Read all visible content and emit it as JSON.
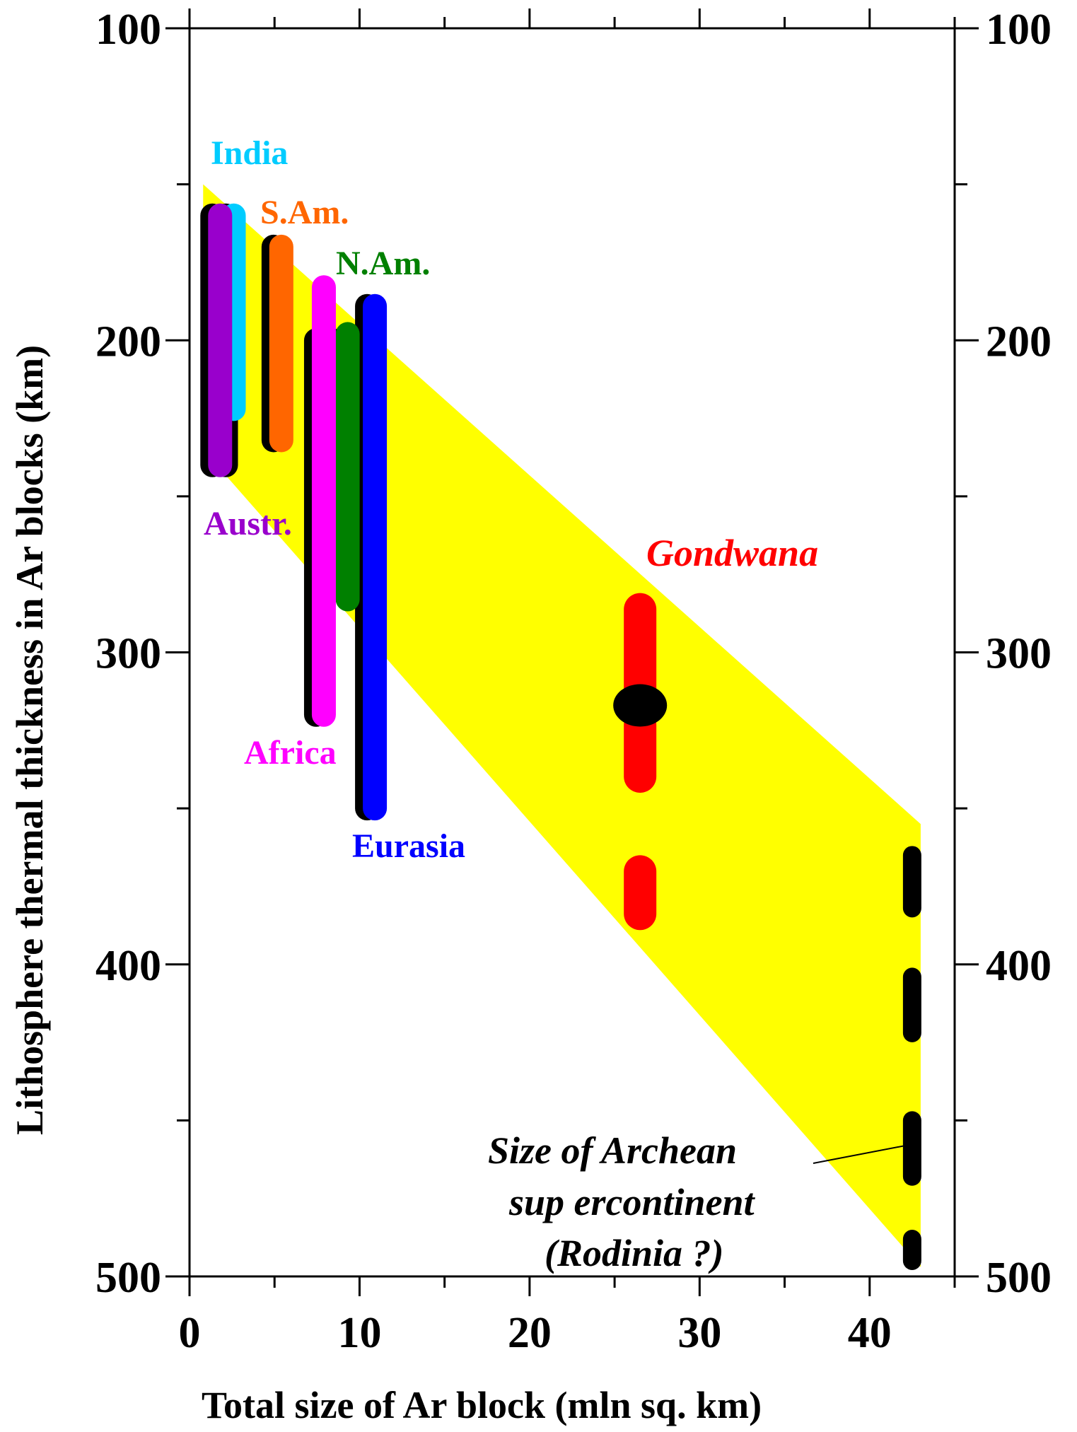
{
  "chart_data": {
    "type": "range",
    "xlabel": "Total size of Ar block (mln sq. km)",
    "ylabel": "Lithosphere thermal thickness in Ar blocks (km)",
    "xlim": [
      0,
      45
    ],
    "ylim": [
      100,
      500
    ],
    "y_inverted": true,
    "x_ticks": [
      0,
      10,
      20,
      30,
      40
    ],
    "y_ticks": [
      100,
      200,
      300,
      400,
      500
    ],
    "right_axis_ticks": [
      100,
      200,
      300,
      400,
      500
    ],
    "band": {
      "color": "#ffff00",
      "upper_edge": [
        [
          0.8,
          150
        ],
        [
          43,
          355
        ]
      ],
      "lower_edge": [
        [
          0.8,
          235
        ],
        [
          43,
          497
        ]
      ]
    },
    "series": [
      {
        "name": "India",
        "color": "#00ccff",
        "x": 2.6,
        "y_range": [
          160,
          222
        ],
        "black_range": [
          160,
          240
        ]
      },
      {
        "name": "S.Am.",
        "color": "#ff6600",
        "x": 5.4,
        "y_range": [
          170,
          232
        ],
        "black_range": [
          170,
          232
        ]
      },
      {
        "name": "N.Am.",
        "color": "#008000",
        "x": 9.3,
        "y_range": [
          198,
          283
        ],
        "black_range": [
          200,
          200
        ]
      },
      {
        "name": "Austr.",
        "color": "#9900cc",
        "x": 1.8,
        "y_range": [
          160,
          240
        ],
        "black_range": [
          160,
          240
        ]
      },
      {
        "name": "Africa",
        "color": "#ff00ff",
        "x": 7.9,
        "y_range": [
          183,
          320
        ],
        "black_range": [
          200,
          320
        ]
      },
      {
        "name": "Eurasia",
        "color": "#0000ff",
        "x": 10.9,
        "y_range": [
          189,
          350
        ],
        "black_range": [
          189,
          350
        ]
      },
      {
        "name": "Gondwana",
        "color": "#ff0000",
        "x": 26.5,
        "y_range": [
          281,
          389
        ],
        "dashed": true,
        "dot_y": 317
      }
    ],
    "rodinia": {
      "x": 42.5,
      "color": "#000000",
      "dashes": [
        [
          365,
          382
        ],
        [
          404,
          422
        ],
        [
          450,
          468
        ],
        [
          488,
          495
        ]
      ],
      "annotation_lines": [
        "Size of  Archean",
        "sup ercontinent",
        "(Rodinia ?)"
      ],
      "arrow_to": [
        42.5,
        458
      ]
    }
  }
}
